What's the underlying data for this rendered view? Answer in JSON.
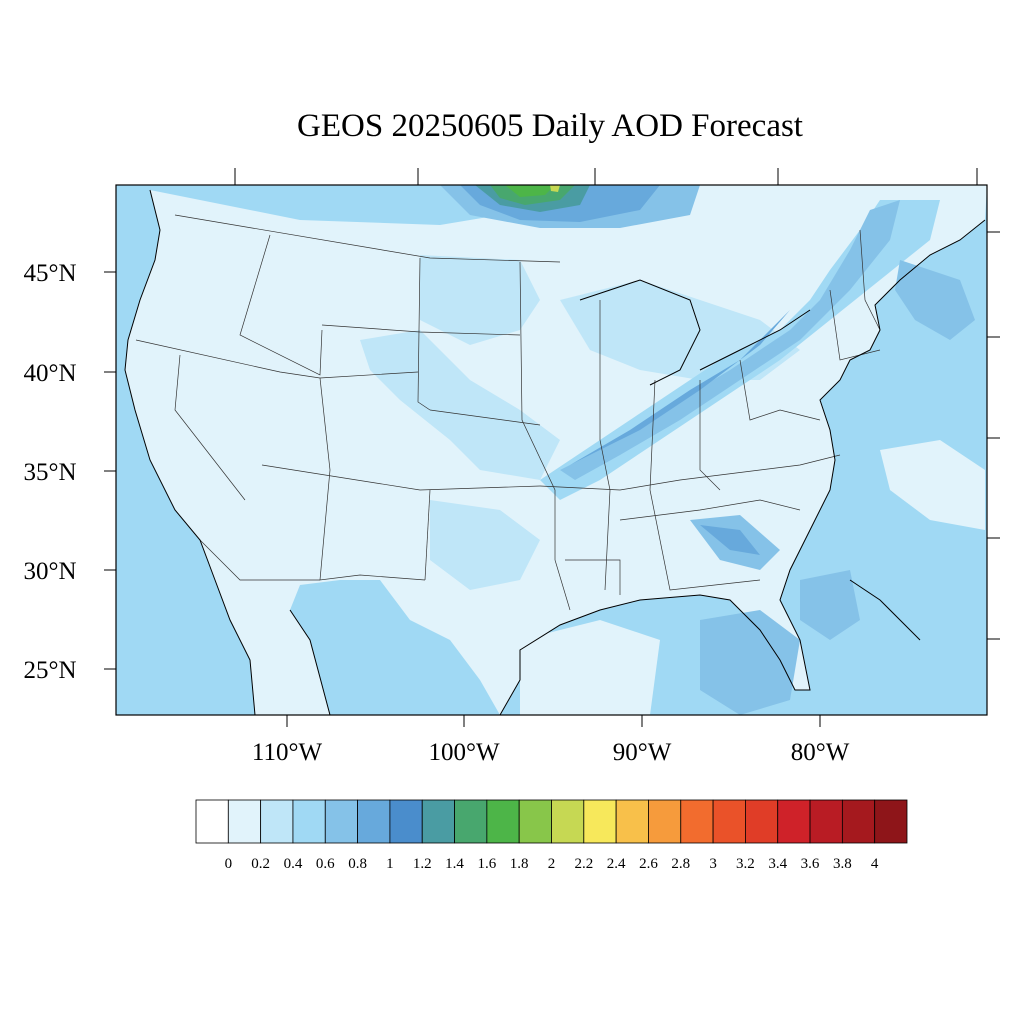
{
  "title": "GEOS 20250605 Daily AOD Forecast",
  "variable": "AOD",
  "lat_ticks": [
    "45°N",
    "40°N",
    "35°N",
    "30°N",
    "25°N"
  ],
  "lon_ticks": [
    "110°W",
    "100°W",
    "90°W",
    "80°W"
  ],
  "colorbar": {
    "labels": [
      "0",
      "0.2",
      "0.4",
      "0.6",
      "0.8",
      "1",
      "1.2",
      "1.4",
      "1.6",
      "1.8",
      "2",
      "2.2",
      "2.4",
      "2.6",
      "2.8",
      "3",
      "3.2",
      "3.4",
      "3.6",
      "3.8",
      "4"
    ],
    "colors": [
      "#ffffff",
      "#e1f3fb",
      "#bfe6f8",
      "#a0d9f4",
      "#85c2e8",
      "#67a9dc",
      "#4a8dcc",
      "#4a9ca3",
      "#48a76e",
      "#4db548",
      "#88c64a",
      "#c6d853",
      "#f7e85b",
      "#f8c04a",
      "#f69b3c",
      "#f26c2e",
      "#ea5229",
      "#e03d27",
      "#cf2229",
      "#b91c24",
      "#a5191e",
      "#8e1519"
    ]
  },
  "colors": {
    "ocean": "#a0d9f4",
    "land_low": "#e1f3fb",
    "land_mid": "#bfe6f8",
    "smoke_core": "#4db548"
  }
}
